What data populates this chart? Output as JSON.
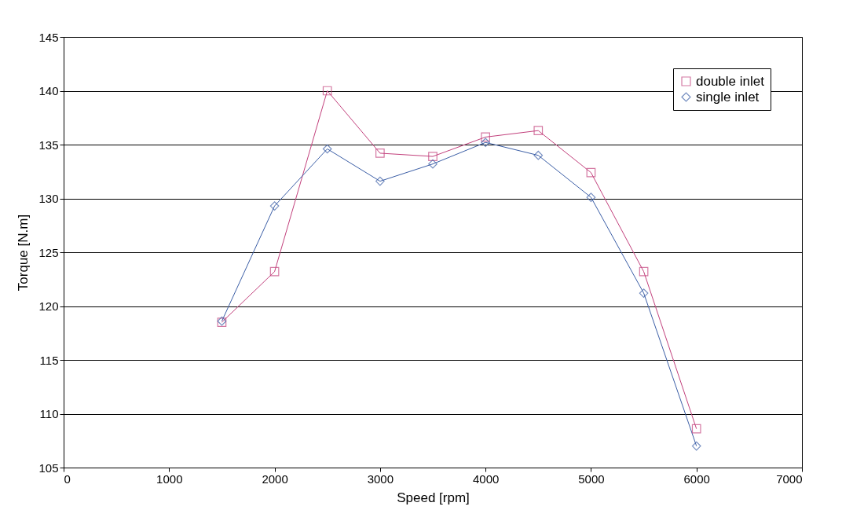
{
  "chart_data": {
    "type": "line",
    "xlabel": "Speed [rpm]",
    "ylabel": "Torque [N.m]",
    "x": [
      1500,
      2000,
      2500,
      3000,
      3500,
      4000,
      4500,
      5000,
      5500,
      6000
    ],
    "series": [
      {
        "name": "double inlet",
        "color": "#c2407c",
        "marker": "square",
        "values": [
          118.5,
          123.2,
          140.0,
          134.2,
          133.9,
          135.7,
          136.3,
          132.4,
          123.2,
          108.6
        ]
      },
      {
        "name": "single inlet",
        "color": "#3b5ea6",
        "marker": "diamond",
        "values": [
          118.6,
          129.3,
          134.6,
          131.6,
          133.2,
          135.2,
          134.0,
          130.1,
          121.2,
          107.0
        ]
      }
    ],
    "xlim": [
      0,
      7000
    ],
    "xticks": [
      0,
      1000,
      2000,
      3000,
      4000,
      5000,
      6000,
      7000
    ],
    "ylim": [
      105,
      145
    ],
    "yticks": [
      105,
      110,
      115,
      120,
      125,
      130,
      135,
      140,
      145
    ],
    "grid": "y",
    "legend": "top right"
  }
}
